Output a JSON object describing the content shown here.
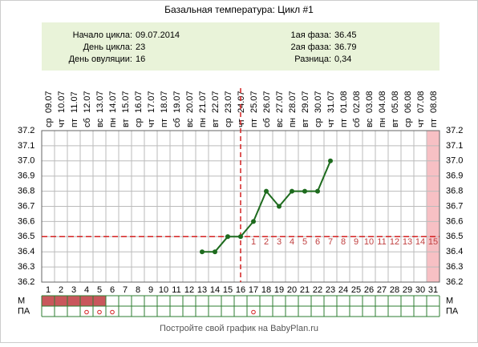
{
  "chart_data": {
    "type": "line",
    "title": "Базальная температура: Цикл #1",
    "info_left": [
      {
        "label": "Начало цикла:",
        "value": "09.07.2014"
      },
      {
        "label": "День цикла:",
        "value": 23
      },
      {
        "label": "День овуляции:",
        "value": 16
      }
    ],
    "info_right": [
      {
        "label": "1ая фаза:",
        "value": 36.45
      },
      {
        "label": "2ая фаза:",
        "value": 36.79
      },
      {
        "label": "Разница:",
        "value": "0,34"
      }
    ],
    "categories": [
      1,
      2,
      3,
      4,
      5,
      6,
      7,
      8,
      9,
      10,
      11,
      12,
      13,
      14,
      15,
      16,
      17,
      18,
      19,
      20,
      21,
      22,
      23,
      24,
      25,
      26,
      27,
      28,
      29,
      30,
      31
    ],
    "dates": [
      "09.07",
      "10.07",
      "11.07",
      "12.07",
      "13.07",
      "14.07",
      "15.07",
      "16.07",
      "17.07",
      "18.07",
      "19.07",
      "20.07",
      "21.07",
      "22.07",
      "23.07",
      "24.07",
      "25.07",
      "26.07",
      "27.07",
      "28.07",
      "29.07",
      "30.07",
      "31.07",
      "01.08",
      "02.08",
      "03.08",
      "04.08",
      "05.08",
      "06.08",
      "07.08",
      "08.08"
    ],
    "weekdays": [
      "ср",
      "чт",
      "пт",
      "сб",
      "вс",
      "пн",
      "вт",
      "ср",
      "чт",
      "пт",
      "сб",
      "вс",
      "пн",
      "вт",
      "ср",
      "чт",
      "пт",
      "сб",
      "вс",
      "пн",
      "вт",
      "ср",
      "чт",
      "пт",
      "сб",
      "вс",
      "пн",
      "вт",
      "ср",
      "чт",
      "пт"
    ],
    "series": [
      {
        "color": "#1e6b1e",
        "values": [
          null,
          null,
          null,
          null,
          null,
          null,
          null,
          null,
          null,
          null,
          null,
          null,
          36.4,
          36.4,
          36.5,
          36.5,
          36.6,
          36.8,
          36.7,
          36.8,
          36.8,
          36.8,
          37.0,
          null,
          null,
          null,
          null,
          null,
          null,
          null,
          null
        ]
      }
    ],
    "ylim": [
      36.2,
      37.2
    ],
    "yticks": [
      36.2,
      36.3,
      36.4,
      36.5,
      36.6,
      36.7,
      36.8,
      36.9,
      {
        "value": 37,
        "label": "37.0"
      },
      37.1,
      37.2
    ],
    "coverline": 36.5,
    "ovulation_day": 16,
    "luteal_days": [
      1,
      2,
      3,
      4,
      5,
      6,
      7,
      8,
      9,
      10,
      11,
      12,
      13,
      14,
      15
    ],
    "highlight_days": [
      31
    ],
    "row_labels": [
      "М",
      "ПА"
    ],
    "menstruation_days": [
      1,
      2,
      3,
      4,
      5
    ],
    "pa_days": [
      4,
      5,
      6,
      17
    ],
    "grid": true,
    "footer": "Постройте свой график на BabyPlan.ru"
  }
}
